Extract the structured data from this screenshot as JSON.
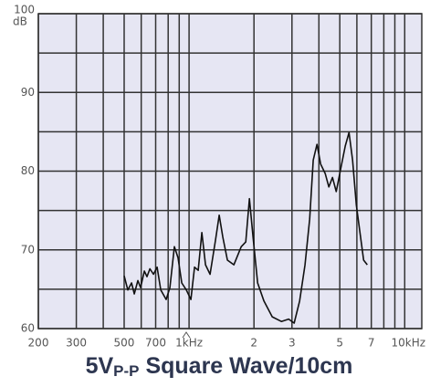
{
  "chart_data": {
    "type": "line",
    "title": {
      "main": "5V",
      "subscript": "P-P",
      "rest": " Square Wave/10cm"
    },
    "ylabel": "dB",
    "xscale": "log",
    "grid": true,
    "color": "#111111",
    "xlim": [
      200,
      12000
    ],
    "ylim": [
      60,
      100
    ],
    "xticks": [
      200,
      300,
      500,
      700,
      {
        "value": 1000,
        "label": "1kHz"
      },
      {
        "value": 2000,
        "label": "2"
      },
      {
        "value": 3000,
        "label": "3"
      },
      {
        "value": 5000,
        "label": "5"
      },
      {
        "value": 7000,
        "label": "7"
      },
      {
        "value": 10000,
        "label": "10kHz"
      }
    ],
    "x_minor_grid": [
      400,
      600,
      800,
      900,
      4000,
      6000,
      8000,
      9000
    ],
    "yticks": [
      60,
      70,
      80,
      90,
      100
    ],
    "y_minor_grid": [
      65,
      75,
      85,
      95
    ],
    "x": [
      500,
      520,
      541,
      557,
      579,
      596,
      620,
      638,
      658,
      684,
      711,
      739,
      783,
      815,
      855,
      889,
      925,
      971,
      1020,
      1060,
      1102,
      1146,
      1192,
      1251,
      1326,
      1380,
      1435,
      1506,
      1614,
      1745,
      1832,
      1905,
      1981,
      2080,
      2225,
      2430,
      2679,
      2897,
      3070,
      3257,
      3450,
      3624,
      3767,
      3920,
      4075,
      4277,
      4448,
      4627,
      4813,
      5050,
      5304,
      5516,
      5734,
      5963,
      6201,
      6449,
      6706
    ],
    "values": [
      66.7,
      64.9,
      65.8,
      64.4,
      66.1,
      65.2,
      67.3,
      66.6,
      67.6,
      66.9,
      67.8,
      64.9,
      63.7,
      65.2,
      70.4,
      69.0,
      65.8,
      64.9,
      63.7,
      67.8,
      67.4,
      72.2,
      68.1,
      66.9,
      71.2,
      74.4,
      71.6,
      68.7,
      68.1,
      70.4,
      71.0,
      76.5,
      71.6,
      65.8,
      63.5,
      61.5,
      60.9,
      61.2,
      60.7,
      63.5,
      68.1,
      73.9,
      81.4,
      83.4,
      80.9,
      79.7,
      78.0,
      79.2,
      77.4,
      80.3,
      83.2,
      84.9,
      81.4,
      75.7,
      72.2,
      68.7,
      68.1
    ]
  }
}
